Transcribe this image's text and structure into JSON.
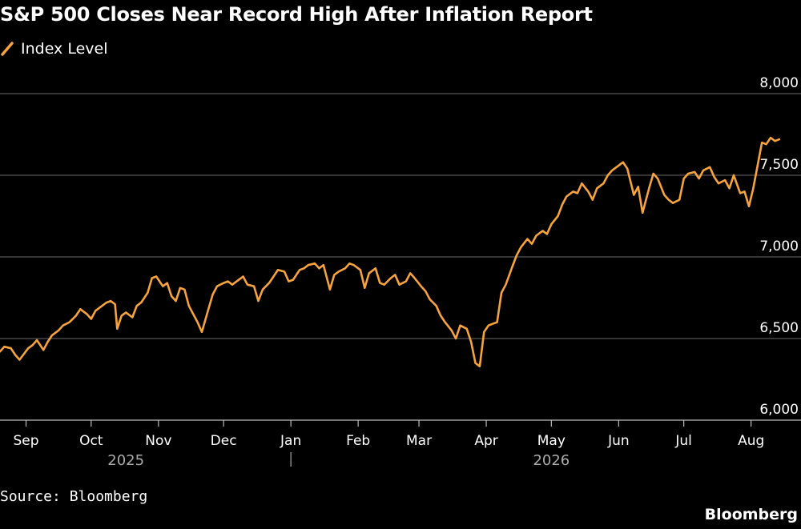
{
  "title": "S&P 500 Closes Near Record High After Inflation Report",
  "source": "Source: Bloomberg",
  "brand": "Bloomberg",
  "colors": {
    "background": "#000000",
    "line": "#f7a33c",
    "grid": "#555555",
    "text": "#ffffff",
    "year_text": "#aaaaaa"
  },
  "chart_data": {
    "type": "line",
    "title": "S&P 500 Closes Near Record High After Inflation Report",
    "xlabel": "",
    "ylabel": "",
    "ylim": [
      6000,
      8000
    ],
    "yticks": [
      6000,
      6500,
      7000,
      7500,
      8000
    ],
    "ytick_labels": [
      "6,000",
      "6,500",
      "7,000",
      "7,500",
      "8,000"
    ],
    "xlim": [
      "2025-08-20",
      "2026-08-24"
    ],
    "month_ticks": [
      {
        "date": "2025-09-01",
        "label": "Sep"
      },
      {
        "date": "2025-10-01",
        "label": "Oct"
      },
      {
        "date": "2025-11-01",
        "label": "Nov"
      },
      {
        "date": "2025-12-01",
        "label": "Dec"
      },
      {
        "date": "2026-01-01",
        "label": "Jan"
      },
      {
        "date": "2026-02-01",
        "label": "Feb"
      },
      {
        "date": "2026-03-01",
        "label": "Mar"
      },
      {
        "date": "2026-04-01",
        "label": "Apr"
      },
      {
        "date": "2026-05-01",
        "label": "May"
      },
      {
        "date": "2026-06-01",
        "label": "Jun"
      },
      {
        "date": "2026-07-01",
        "label": "Jul"
      },
      {
        "date": "2026-08-01",
        "label": "Aug"
      }
    ],
    "years": [
      {
        "label": "2025",
        "center": "2025-10-17"
      },
      {
        "label": "2026",
        "center": "2026-05-01"
      }
    ],
    "year_divider": "2026-01-01",
    "grid": true,
    "legend_position": "top-left",
    "series": [
      {
        "name": "Index Level",
        "color": "#f7a33c",
        "points": [
          [
            "2025-08-20",
            6420
          ],
          [
            "2025-08-22",
            6450
          ],
          [
            "2025-08-25",
            6440
          ],
          [
            "2025-08-27",
            6400
          ],
          [
            "2025-08-29",
            6370
          ],
          [
            "2025-09-02",
            6440
          ],
          [
            "2025-09-04",
            6460
          ],
          [
            "2025-09-06",
            6490
          ],
          [
            "2025-09-09",
            6430
          ],
          [
            "2025-09-11",
            6480
          ],
          [
            "2025-09-13",
            6520
          ],
          [
            "2025-09-16",
            6550
          ],
          [
            "2025-09-18",
            6580
          ],
          [
            "2025-09-21",
            6600
          ],
          [
            "2025-09-24",
            6640
          ],
          [
            "2025-09-26",
            6680
          ],
          [
            "2025-09-29",
            6650
          ],
          [
            "2025-10-01",
            6620
          ],
          [
            "2025-10-03",
            6670
          ],
          [
            "2025-10-06",
            6700
          ],
          [
            "2025-10-08",
            6720
          ],
          [
            "2025-10-10",
            6730
          ],
          [
            "2025-10-12",
            6710
          ],
          [
            "2025-10-13",
            6560
          ],
          [
            "2025-10-15",
            6640
          ],
          [
            "2025-10-17",
            6660
          ],
          [
            "2025-10-20",
            6630
          ],
          [
            "2025-10-22",
            6700
          ],
          [
            "2025-10-24",
            6720
          ],
          [
            "2025-10-27",
            6780
          ],
          [
            "2025-10-29",
            6870
          ],
          [
            "2025-10-31",
            6880
          ],
          [
            "2025-11-03",
            6820
          ],
          [
            "2025-11-05",
            6840
          ],
          [
            "2025-11-07",
            6760
          ],
          [
            "2025-11-09",
            6730
          ],
          [
            "2025-11-11",
            6810
          ],
          [
            "2025-11-13",
            6800
          ],
          [
            "2025-11-15",
            6700
          ],
          [
            "2025-11-17",
            6650
          ],
          [
            "2025-11-19",
            6600
          ],
          [
            "2025-11-21",
            6540
          ],
          [
            "2025-11-24",
            6680
          ],
          [
            "2025-11-26",
            6770
          ],
          [
            "2025-11-28",
            6820
          ],
          [
            "2025-12-01",
            6840
          ],
          [
            "2025-12-03",
            6850
          ],
          [
            "2025-12-05",
            6830
          ],
          [
            "2025-12-08",
            6860
          ],
          [
            "2025-12-10",
            6880
          ],
          [
            "2025-12-12",
            6830
          ],
          [
            "2025-12-15",
            6820
          ],
          [
            "2025-12-17",
            6730
          ],
          [
            "2025-12-19",
            6800
          ],
          [
            "2025-12-22",
            6840
          ],
          [
            "2025-12-24",
            6880
          ],
          [
            "2025-12-26",
            6920
          ],
          [
            "2025-12-29",
            6910
          ],
          [
            "2025-12-31",
            6850
          ],
          [
            "2026-01-02",
            6860
          ],
          [
            "2026-01-05",
            6920
          ],
          [
            "2026-01-07",
            6930
          ],
          [
            "2026-01-09",
            6950
          ],
          [
            "2026-01-12",
            6960
          ],
          [
            "2026-01-14",
            6930
          ],
          [
            "2026-01-16",
            6950
          ],
          [
            "2026-01-19",
            6800
          ],
          [
            "2026-01-21",
            6890
          ],
          [
            "2026-01-23",
            6910
          ],
          [
            "2026-01-26",
            6930
          ],
          [
            "2026-01-28",
            6960
          ],
          [
            "2026-01-30",
            6950
          ],
          [
            "2026-02-02",
            6920
          ],
          [
            "2026-02-04",
            6810
          ],
          [
            "2026-02-06",
            6900
          ],
          [
            "2026-02-09",
            6930
          ],
          [
            "2026-02-11",
            6840
          ],
          [
            "2026-02-13",
            6830
          ],
          [
            "2026-02-16",
            6870
          ],
          [
            "2026-02-18",
            6890
          ],
          [
            "2026-02-20",
            6830
          ],
          [
            "2026-02-23",
            6850
          ],
          [
            "2026-02-25",
            6900
          ],
          [
            "2026-02-27",
            6870
          ],
          [
            "2026-03-02",
            6820
          ],
          [
            "2026-03-04",
            6790
          ],
          [
            "2026-03-06",
            6740
          ],
          [
            "2026-03-09",
            6700
          ],
          [
            "2026-03-11",
            6640
          ],
          [
            "2026-03-13",
            6600
          ],
          [
            "2026-03-16",
            6550
          ],
          [
            "2026-03-18",
            6500
          ],
          [
            "2026-03-20",
            6580
          ],
          [
            "2026-03-23",
            6560
          ],
          [
            "2026-03-25",
            6480
          ],
          [
            "2026-03-27",
            6350
          ],
          [
            "2026-03-29",
            6330
          ],
          [
            "2026-03-31",
            6540
          ],
          [
            "2026-04-02",
            6580
          ],
          [
            "2026-04-04",
            6590
          ],
          [
            "2026-04-06",
            6600
          ],
          [
            "2026-04-08",
            6780
          ],
          [
            "2026-04-10",
            6830
          ],
          [
            "2026-04-13",
            6940
          ],
          [
            "2026-04-15",
            7010
          ],
          [
            "2026-04-17",
            7060
          ],
          [
            "2026-04-20",
            7110
          ],
          [
            "2026-04-22",
            7080
          ],
          [
            "2026-04-24",
            7130
          ],
          [
            "2026-04-27",
            7160
          ],
          [
            "2026-04-29",
            7140
          ],
          [
            "2026-05-01",
            7200
          ],
          [
            "2026-05-04",
            7250
          ],
          [
            "2026-05-06",
            7320
          ],
          [
            "2026-05-08",
            7370
          ],
          [
            "2026-05-11",
            7400
          ],
          [
            "2026-05-13",
            7390
          ],
          [
            "2026-05-15",
            7450
          ],
          [
            "2026-05-18",
            7400
          ],
          [
            "2026-05-20",
            7350
          ],
          [
            "2026-05-22",
            7420
          ],
          [
            "2026-05-25",
            7450
          ],
          [
            "2026-05-27",
            7500
          ],
          [
            "2026-05-29",
            7530
          ],
          [
            "2026-06-01",
            7560
          ],
          [
            "2026-06-03",
            7580
          ],
          [
            "2026-06-05",
            7540
          ],
          [
            "2026-06-08",
            7380
          ],
          [
            "2026-06-10",
            7430
          ],
          [
            "2026-06-12",
            7270
          ],
          [
            "2026-06-15",
            7420
          ],
          [
            "2026-06-17",
            7510
          ],
          [
            "2026-06-19",
            7480
          ],
          [
            "2026-06-22",
            7380
          ],
          [
            "2026-06-24",
            7350
          ],
          [
            "2026-06-26",
            7330
          ],
          [
            "2026-06-29",
            7350
          ],
          [
            "2026-07-01",
            7480
          ],
          [
            "2026-07-03",
            7510
          ],
          [
            "2026-07-06",
            7520
          ],
          [
            "2026-07-08",
            7480
          ],
          [
            "2026-07-10",
            7530
          ],
          [
            "2026-07-13",
            7550
          ],
          [
            "2026-07-15",
            7490
          ],
          [
            "2026-07-17",
            7450
          ],
          [
            "2026-07-20",
            7470
          ],
          [
            "2026-07-22",
            7420
          ],
          [
            "2026-07-24",
            7500
          ],
          [
            "2026-07-27",
            7390
          ],
          [
            "2026-07-29",
            7400
          ],
          [
            "2026-07-31",
            7310
          ],
          [
            "2026-08-02",
            7420
          ],
          [
            "2026-08-04",
            7560
          ],
          [
            "2026-08-06",
            7700
          ],
          [
            "2026-08-08",
            7690
          ],
          [
            "2026-08-10",
            7730
          ],
          [
            "2026-08-12",
            7710
          ],
          [
            "2026-08-14",
            7720
          ]
        ]
      }
    ]
  }
}
